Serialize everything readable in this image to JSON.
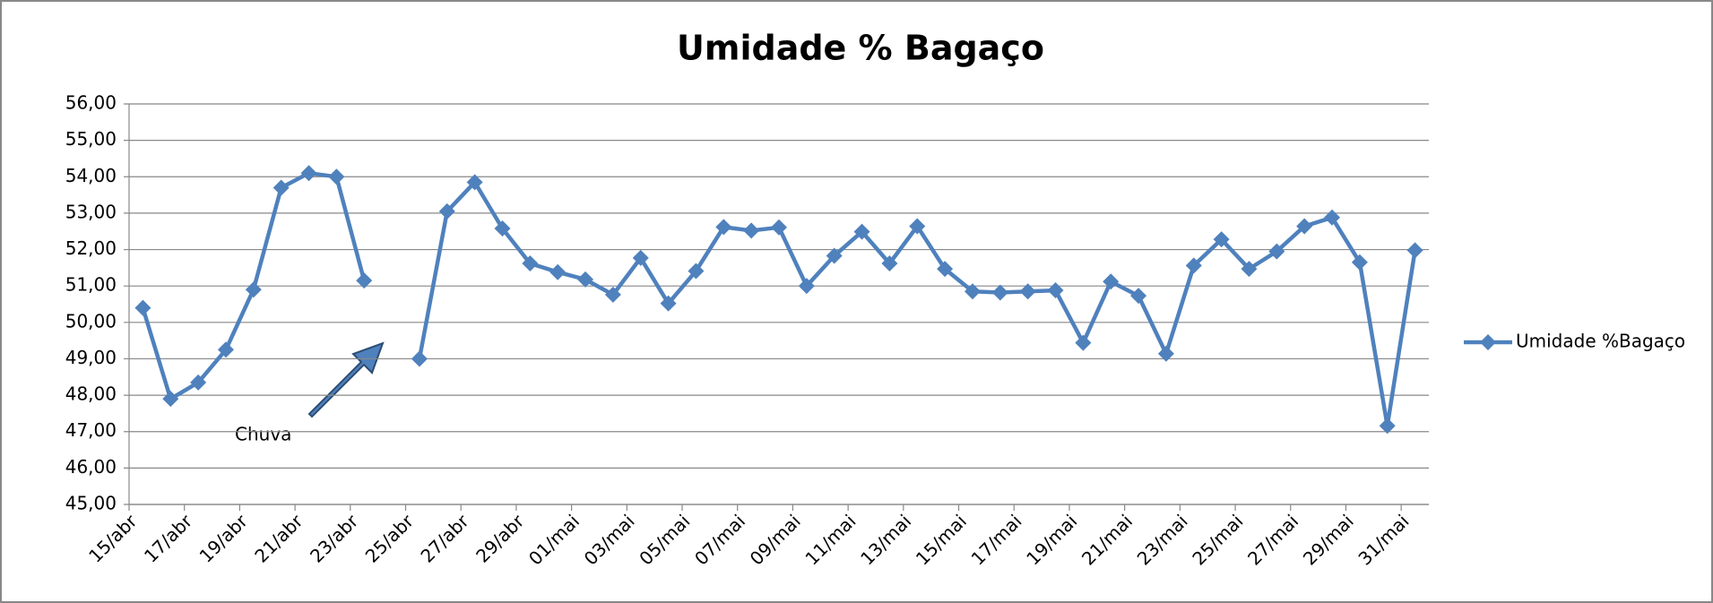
{
  "chart_data": {
    "type": "line",
    "title": "Umidade % Bagaço",
    "categories": [
      "15/abr",
      null,
      "17/abr",
      null,
      "19/abr",
      null,
      "21/abr",
      null,
      "23/abr",
      null,
      "25/abr",
      null,
      "27/abr",
      null,
      "29/abr",
      null,
      "01/mai",
      null,
      "03/mai",
      null,
      "05/mai",
      null,
      "07/mai",
      null,
      "09/mai",
      null,
      "11/mai",
      null,
      "13/mai",
      null,
      "15/mai",
      null,
      "17/mai",
      null,
      "19/mai",
      null,
      "21/mai",
      null,
      "23/mai",
      null,
      "25/mai",
      null,
      "27/mai",
      null,
      "29/mai",
      null,
      "31/mai"
    ],
    "series": [
      {
        "name": "Umidade %Bagaço",
        "color": "#4f81bd",
        "values": [
          50.4,
          47.9,
          48.35,
          49.25,
          50.9,
          53.7,
          54.1,
          54.0,
          51.15,
          null,
          49.0,
          53.05,
          53.85,
          52.58,
          51.62,
          51.38,
          51.18,
          50.76,
          51.77,
          50.52,
          51.41,
          52.62,
          52.52,
          52.61,
          51.0,
          51.83,
          52.49,
          51.62,
          52.64,
          51.47,
          50.85,
          50.82,
          50.85,
          50.88,
          49.44,
          51.12,
          50.73,
          49.14,
          51.56,
          52.28,
          51.47,
          51.95,
          52.64,
          52.88,
          51.65,
          47.16,
          51.98
        ]
      }
    ],
    "ylim": [
      45,
      56
    ],
    "yticks": [
      {
        "value": 45,
        "label": "45,00"
      },
      {
        "value": 46,
        "label": "46,00"
      },
      {
        "value": 47,
        "label": "47,00"
      },
      {
        "value": 48,
        "label": "48,00"
      },
      {
        "value": 49,
        "label": "49,00"
      },
      {
        "value": 50,
        "label": "50,00"
      },
      {
        "value": 51,
        "label": "51,00"
      },
      {
        "value": 52,
        "label": "52,00"
      },
      {
        "value": 53,
        "label": "53,00"
      },
      {
        "value": 54,
        "label": "54,00"
      },
      {
        "value": 55,
        "label": "55,00"
      },
      {
        "value": 56,
        "label": "56,00"
      }
    ],
    "grid": true,
    "legend": "right",
    "annotations": [
      "Chuva"
    ]
  }
}
